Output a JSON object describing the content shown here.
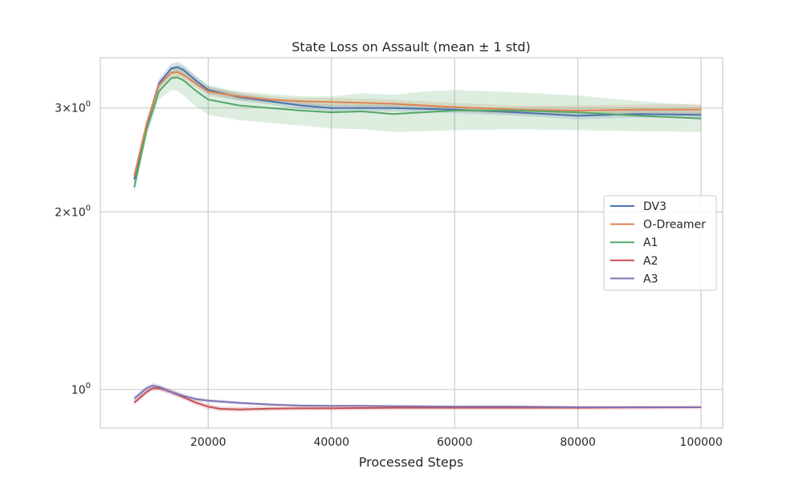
{
  "chart_data": {
    "type": "line",
    "title": "State Loss on Assault (mean ± 1 std)",
    "xlabel": "Processed Steps",
    "ylabel": "",
    "yscale": "log",
    "xlim": [
      2500,
      103500
    ],
    "ylim": [
      0.86,
      3.65
    ],
    "grid": true,
    "legend_position": "right",
    "x_ticks": [
      20000,
      40000,
      60000,
      80000,
      100000
    ],
    "x_tick_labels": [
      "20000",
      "40000",
      "60000",
      "80000",
      "100000"
    ],
    "y_ticks": [
      {
        "value": 3,
        "mantissa": "3",
        "exponent": "0"
      },
      {
        "value": 2,
        "mantissa": "2",
        "exponent": "0"
      },
      {
        "value": 1,
        "mantissa": "1",
        "exponent": "0"
      }
    ],
    "series": [
      {
        "name": "DV3",
        "color": "#4c72b0",
        "x": [
          8000,
          10000,
          12000,
          14000,
          15000,
          16000,
          18000,
          20000,
          25000,
          30000,
          35000,
          40000,
          50000,
          60000,
          70000,
          80000,
          90000,
          100000
        ],
        "mean": [
          2.27,
          2.8,
          3.3,
          3.5,
          3.52,
          3.48,
          3.34,
          3.22,
          3.13,
          3.08,
          3.03,
          3.0,
          3.0,
          2.98,
          2.95,
          2.91,
          2.93,
          2.92
        ],
        "lower": [
          2.22,
          2.75,
          3.24,
          3.43,
          3.45,
          3.41,
          3.28,
          3.17,
          3.09,
          3.04,
          2.99,
          2.96,
          2.96,
          2.94,
          2.91,
          2.87,
          2.89,
          2.88
        ],
        "upper": [
          2.32,
          2.85,
          3.36,
          3.57,
          3.59,
          3.55,
          3.4,
          3.27,
          3.17,
          3.12,
          3.07,
          3.04,
          3.04,
          3.02,
          2.99,
          2.95,
          2.97,
          2.96
        ]
      },
      {
        "name": "O-Dreamer",
        "color": "#dd8452",
        "x": [
          8000,
          10000,
          12000,
          14000,
          15000,
          16000,
          18000,
          20000,
          25000,
          30000,
          35000,
          40000,
          50000,
          60000,
          70000,
          80000,
          90000,
          100000
        ],
        "mean": [
          2.3,
          2.82,
          3.28,
          3.44,
          3.45,
          3.41,
          3.3,
          3.2,
          3.14,
          3.1,
          3.08,
          3.07,
          3.05,
          3.01,
          2.98,
          2.97,
          2.98,
          2.98
        ],
        "lower": [
          2.25,
          2.77,
          3.22,
          3.38,
          3.39,
          3.35,
          3.25,
          3.15,
          3.09,
          3.06,
          3.04,
          3.02,
          3.0,
          2.96,
          2.93,
          2.91,
          2.92,
          2.92
        ],
        "upper": [
          2.35,
          2.87,
          3.34,
          3.5,
          3.51,
          3.47,
          3.35,
          3.25,
          3.19,
          3.14,
          3.12,
          3.12,
          3.1,
          3.06,
          3.03,
          3.03,
          3.04,
          3.05
        ]
      },
      {
        "name": "A1",
        "color": "#55a868",
        "x": [
          8000,
          10000,
          12000,
          14000,
          15000,
          16000,
          18000,
          20000,
          25000,
          30000,
          35000,
          40000,
          45000,
          50000,
          55000,
          60000,
          70000,
          80000,
          90000,
          100000
        ],
        "mean": [
          2.2,
          2.75,
          3.2,
          3.37,
          3.38,
          3.34,
          3.21,
          3.1,
          3.03,
          3.0,
          2.97,
          2.95,
          2.96,
          2.93,
          2.95,
          2.97,
          2.97,
          2.95,
          2.91,
          2.88
        ],
        "lower": [
          2.15,
          2.68,
          3.1,
          3.22,
          3.21,
          3.15,
          3.02,
          2.92,
          2.86,
          2.83,
          2.8,
          2.77,
          2.76,
          2.73,
          2.74,
          2.75,
          2.76,
          2.75,
          2.74,
          2.73
        ],
        "upper": [
          2.25,
          2.82,
          3.3,
          3.52,
          3.55,
          3.53,
          3.4,
          3.28,
          3.2,
          3.17,
          3.14,
          3.14,
          3.18,
          3.16,
          3.2,
          3.22,
          3.19,
          3.15,
          3.08,
          3.03
        ]
      },
      {
        "name": "A2",
        "color": "#c44e52",
        "x": [
          8000,
          10000,
          11000,
          12000,
          13000,
          14000,
          16000,
          18000,
          20000,
          22000,
          25000,
          30000,
          35000,
          40000,
          50000,
          60000,
          70000,
          80000,
          90000,
          100000
        ],
        "mean": [
          0.95,
          0.99,
          1.005,
          1.005,
          0.998,
          0.99,
          0.97,
          0.95,
          0.935,
          0.927,
          0.925,
          0.928,
          0.929,
          0.929,
          0.931,
          0.931,
          0.931,
          0.931,
          0.932,
          0.933
        ],
        "lower": [
          0.94,
          0.98,
          0.995,
          0.995,
          0.988,
          0.98,
          0.96,
          0.94,
          0.925,
          0.918,
          0.916,
          0.919,
          0.921,
          0.921,
          0.923,
          0.923,
          0.923,
          0.924,
          0.925,
          0.926
        ],
        "upper": [
          0.96,
          1.0,
          1.015,
          1.015,
          1.008,
          1.0,
          0.98,
          0.96,
          0.945,
          0.936,
          0.934,
          0.937,
          0.937,
          0.937,
          0.939,
          0.939,
          0.939,
          0.938,
          0.939,
          0.94
        ]
      },
      {
        "name": "A3",
        "color": "#8172b2",
        "x": [
          8000,
          10000,
          11000,
          12000,
          13000,
          14000,
          16000,
          18000,
          20000,
          25000,
          30000,
          35000,
          40000,
          45000,
          50000,
          60000,
          70000,
          80000,
          90000,
          100000
        ],
        "mean": [
          0.965,
          1.005,
          1.015,
          1.01,
          1.0,
          0.99,
          0.975,
          0.963,
          0.957,
          0.949,
          0.943,
          0.939,
          0.938,
          0.938,
          0.937,
          0.935,
          0.935,
          0.933,
          0.933,
          0.933
        ],
        "lower": [
          0.955,
          0.995,
          1.005,
          1.0,
          0.99,
          0.98,
          0.966,
          0.955,
          0.95,
          0.943,
          0.938,
          0.935,
          0.934,
          0.934,
          0.933,
          0.931,
          0.931,
          0.93,
          0.93,
          0.93
        ],
        "upper": [
          0.975,
          1.015,
          1.025,
          1.02,
          1.01,
          1.0,
          0.984,
          0.971,
          0.964,
          0.955,
          0.948,
          0.943,
          0.942,
          0.942,
          0.941,
          0.939,
          0.939,
          0.936,
          0.936,
          0.936
        ]
      }
    ]
  }
}
